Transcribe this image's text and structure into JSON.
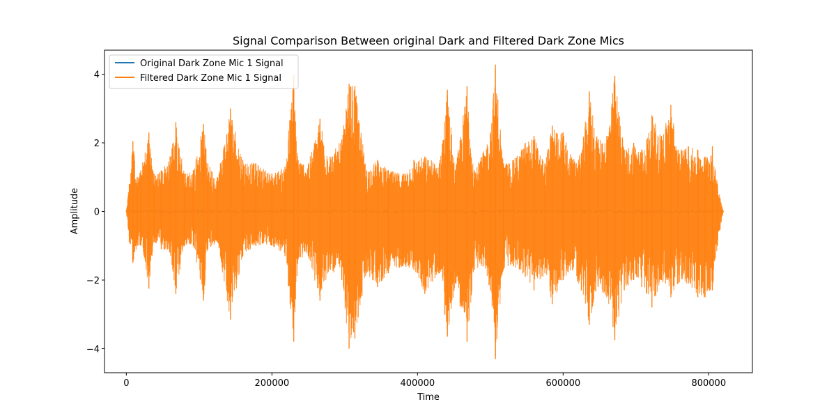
{
  "chart_data": {
    "type": "line",
    "title": "Signal Comparison Between original Dark and Filtered Dark Zone Mics",
    "xlabel": "Time",
    "ylabel": "Amplitude",
    "xlim": [
      -30000,
      860000
    ],
    "ylim": [
      -4.7,
      4.7
    ],
    "xticks": [
      0,
      200000,
      400000,
      600000,
      800000
    ],
    "xtick_labels": [
      "0",
      "200000",
      "400000",
      "600000",
      "800000"
    ],
    "yticks": [
      -4,
      -2,
      0,
      2,
      4
    ],
    "ytick_labels": [
      "−4",
      "−2",
      "0",
      "2",
      "4"
    ],
    "grid": false,
    "legend_position": "top-left",
    "series": [
      {
        "name": "Original Dark Zone Mic 1 Signal",
        "color": "#1f77b4",
        "x": [
          0,
          820000
        ],
        "approx_amplitude": 0.05
      },
      {
        "name": "Filtered Dark Zone Mic 1 Signal",
        "color": "#ff7f0e",
        "x_start": 0,
        "x_end": 820000,
        "envelope_x": [
          0,
          4000,
          9000,
          15000,
          20000,
          31000,
          38000,
          48000,
          60000,
          68000,
          80000,
          92000,
          106000,
          112000,
          125000,
          143000,
          160000,
          178000,
          200000,
          218000,
          230000,
          236000,
          250000,
          266000,
          280000,
          296000,
          306000,
          314000,
          330000,
          345000,
          360000,
          380000,
          395000,
          410000,
          430000,
          441000,
          452000,
          468000,
          478000,
          490000,
          500000,
          507000,
          518000,
          532000,
          548000,
          560000,
          575000,
          585000,
          600000,
          613000,
          625000,
          636000,
          648000,
          660000,
          671000,
          684000,
          697000,
          708000,
          715000,
          722000,
          735000,
          748000,
          758000,
          772000,
          785000,
          795000,
          805000,
          812000,
          820000
        ],
        "envelope_upper": [
          0.02,
          0.8,
          2.05,
          1.0,
          1.2,
          2.3,
          1.1,
          1.2,
          1.6,
          2.6,
          1.1,
          1.2,
          2.55,
          1.4,
          1.0,
          3.0,
          1.5,
          1.4,
          1.1,
          1.3,
          3.97,
          1.5,
          1.4,
          2.7,
          1.6,
          2.1,
          3.72,
          3.65,
          1.2,
          1.5,
          1.2,
          1.1,
          1.5,
          1.6,
          1.4,
          3.55,
          1.2,
          3.65,
          1.2,
          1.7,
          2.3,
          4.28,
          1.4,
          1.5,
          2.0,
          2.2,
          1.4,
          2.5,
          2.3,
          1.5,
          1.7,
          3.5,
          2.1,
          2.2,
          3.95,
          1.8,
          2.0,
          1.8,
          2.1,
          2.8,
          2.2,
          3.1,
          1.8,
          1.9,
          1.8,
          1.6,
          1.9,
          0.8,
          0.02
        ],
        "envelope_lower": [
          -0.02,
          -0.9,
          -1.5,
          -1.0,
          -1.0,
          -2.25,
          -0.9,
          -1.1,
          -1.2,
          -2.4,
          -1.0,
          -1.0,
          -2.6,
          -1.1,
          -0.9,
          -3.15,
          -1.3,
          -1.0,
          -1.0,
          -1.3,
          -3.8,
          -1.4,
          -1.3,
          -2.6,
          -1.7,
          -2.0,
          -4.0,
          -3.7,
          -1.8,
          -2.2,
          -1.8,
          -1.6,
          -1.7,
          -2.4,
          -1.8,
          -3.65,
          -2.1,
          -3.8,
          -1.7,
          -1.6,
          -2.3,
          -4.3,
          -1.7,
          -1.6,
          -1.9,
          -2.3,
          -1.8,
          -2.7,
          -2.0,
          -1.7,
          -2.3,
          -3.3,
          -2.2,
          -2.5,
          -3.75,
          -2.3,
          -2.0,
          -2.2,
          -2.4,
          -2.8,
          -2.0,
          -2.5,
          -2.1,
          -2.1,
          -2.5,
          -2.5,
          -2.3,
          -1.0,
          -0.02
        ]
      }
    ]
  }
}
